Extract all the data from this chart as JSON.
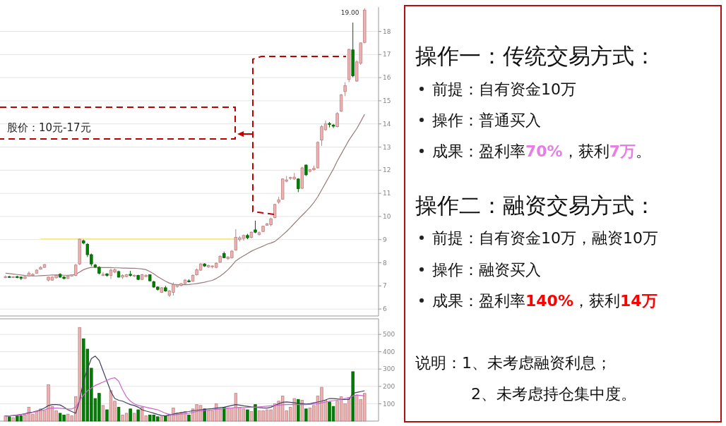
{
  "chart_data": [
    {
      "type": "candlestick",
      "tick_labels": "y",
      "grid": "y",
      "ylim": [
        5.7,
        19.05
      ],
      "yticks": [
        6,
        7,
        8,
        9,
        10,
        11,
        12,
        13,
        14,
        15,
        16,
        17,
        18
      ],
      "categories": [
        null,
        null,
        null,
        null,
        null,
        null,
        null,
        null,
        null,
        null,
        null,
        null,
        null,
        null,
        null,
        null,
        null,
        null,
        null,
        null,
        null,
        null,
        null,
        null,
        null,
        null,
        null,
        null,
        null,
        null,
        null,
        null,
        null,
        null,
        null,
        null,
        null,
        null,
        null,
        null,
        null,
        null,
        null,
        null,
        null,
        null,
        null,
        null,
        null,
        null,
        null,
        null,
        null,
        null,
        null,
        null,
        null,
        null,
        null,
        null,
        null,
        null,
        null,
        null,
        null,
        null,
        null,
        null,
        null,
        null,
        null,
        null,
        null,
        null,
        null,
        null,
        null,
        null,
        null,
        null,
        null,
        null,
        null,
        null,
        null,
        null,
        null,
        null,
        null,
        null,
        null,
        null,
        null
      ],
      "ohlc": [
        [
          7.36,
          7.45,
          7.33,
          7.4
        ],
        [
          7.4,
          7.43,
          7.35,
          7.37
        ],
        [
          7.37,
          7.42,
          7.34,
          7.39
        ],
        [
          7.4,
          7.44,
          7.33,
          7.36
        ],
        [
          7.38,
          7.4,
          7.25,
          7.33
        ],
        [
          7.32,
          7.42,
          7.3,
          7.4
        ],
        [
          7.42,
          7.62,
          7.4,
          7.55
        ],
        [
          7.45,
          7.55,
          7.42,
          7.5
        ],
        [
          7.55,
          7.72,
          7.52,
          7.68
        ],
        [
          7.72,
          7.85,
          7.7,
          7.8
        ],
        [
          7.8,
          7.95,
          7.78,
          7.92
        ],
        [
          7.25,
          7.4,
          7.2,
          7.38
        ],
        [
          7.25,
          7.42,
          7.22,
          7.38
        ],
        [
          7.35,
          7.5,
          7.32,
          7.45
        ],
        [
          7.5,
          7.55,
          7.35,
          7.38
        ],
        [
          7.38,
          7.42,
          7.28,
          7.32
        ],
        [
          7.32,
          7.45,
          7.3,
          7.42
        ],
        [
          7.42,
          7.5,
          7.4,
          7.48
        ],
        [
          7.45,
          7.95,
          7.42,
          7.9
        ],
        [
          7.95,
          9.05,
          7.9,
          9.02
        ],
        [
          8.95,
          9.0,
          8.8,
          8.85
        ],
        [
          8.8,
          8.85,
          8.25,
          8.35
        ],
        [
          8.35,
          8.4,
          7.85,
          7.95
        ],
        [
          7.9,
          7.95,
          7.78,
          7.82
        ],
        [
          7.8,
          7.85,
          7.5,
          7.55
        ],
        [
          7.45,
          7.6,
          7.42,
          7.5
        ],
        [
          7.52,
          7.55,
          7.4,
          7.45
        ],
        [
          7.45,
          7.75,
          7.3,
          7.68
        ],
        [
          7.6,
          7.75,
          7.55,
          7.7
        ],
        [
          7.62,
          7.66,
          7.35,
          7.38
        ],
        [
          7.38,
          7.5,
          7.3,
          7.45
        ],
        [
          7.4,
          7.52,
          7.38,
          7.48
        ],
        [
          7.5,
          7.65,
          7.4,
          7.45
        ],
        [
          7.42,
          7.5,
          7.38,
          7.45
        ],
        [
          7.45,
          7.48,
          7.25,
          7.28
        ],
        [
          7.28,
          7.52,
          7.25,
          7.48
        ],
        [
          7.4,
          7.5,
          7.38,
          7.46
        ],
        [
          7.48,
          7.5,
          7.2,
          7.22
        ],
        [
          7.18,
          7.22,
          6.92,
          6.95
        ],
        [
          6.95,
          6.98,
          6.8,
          6.85
        ],
        [
          6.72,
          6.95,
          6.7,
          6.92
        ],
        [
          6.92,
          7.0,
          6.75,
          6.78
        ],
        [
          6.6,
          6.82,
          6.52,
          6.78
        ],
        [
          6.72,
          7.15,
          6.58,
          7.05
        ],
        [
          6.98,
          7.08,
          6.92,
          7.05
        ],
        [
          7.02,
          7.12,
          6.98,
          7.1
        ],
        [
          7.1,
          7.3,
          7.08,
          7.25
        ],
        [
          7.22,
          7.28,
          7.15,
          7.18
        ],
        [
          7.2,
          7.5,
          7.18,
          7.45
        ],
        [
          7.48,
          7.75,
          7.45,
          7.7
        ],
        [
          7.68,
          7.98,
          7.65,
          7.95
        ],
        [
          7.95,
          7.98,
          7.82,
          7.86
        ],
        [
          7.82,
          7.92,
          7.78,
          7.88
        ],
        [
          7.84,
          7.9,
          7.76,
          7.86
        ],
        [
          7.8,
          8.02,
          7.76,
          7.98
        ],
        [
          8.02,
          8.32,
          8.0,
          8.28
        ],
        [
          8.4,
          8.48,
          8.2,
          8.22
        ],
        [
          8.18,
          8.28,
          8.12,
          8.25
        ],
        [
          8.22,
          8.55,
          8.18,
          8.5
        ],
        [
          8.55,
          9.45,
          8.52,
          9.1
        ],
        [
          9.0,
          9.15,
          8.92,
          9.08
        ],
        [
          9.05,
          9.22,
          8.95,
          9.18
        ],
        [
          9.18,
          9.25,
          9.02,
          9.08
        ],
        [
          9.1,
          9.35,
          9.05,
          9.32
        ],
        [
          9.42,
          9.82,
          9.28,
          9.32
        ],
        [
          9.22,
          9.35,
          9.18,
          9.3
        ],
        [
          9.35,
          9.6,
          9.32,
          9.58
        ],
        [
          9.62,
          9.72,
          9.6,
          9.68
        ],
        [
          9.65,
          9.95,
          9.58,
          9.9
        ],
        [
          9.95,
          10.55,
          9.92,
          10.52
        ],
        [
          10.62,
          10.85,
          10.55,
          10.72
        ],
        [
          10.75,
          11.65,
          10.72,
          11.62
        ],
        [
          11.52,
          11.75,
          11.48,
          11.58
        ],
        [
          11.65,
          11.72,
          11.58,
          11.68
        ],
        [
          11.62,
          11.88,
          11.58,
          11.7
        ],
        [
          11.62,
          11.65,
          11.05,
          11.2
        ],
        [
          11.22,
          12.15,
          11.18,
          12.1
        ],
        [
          12.22,
          12.25,
          11.75,
          11.8
        ],
        [
          11.95,
          12.05,
          11.9,
          12.02
        ],
        [
          12.02,
          12.2,
          11.98,
          12.08
        ],
        [
          12.1,
          13.25,
          12.08,
          13.2
        ],
        [
          13.3,
          13.95,
          13.05,
          13.88
        ],
        [
          13.75,
          14.15,
          13.7,
          14.0
        ],
        [
          14.02,
          14.08,
          13.85,
          13.98
        ],
        [
          13.95,
          14.0,
          13.82,
          13.9
        ],
        [
          13.88,
          14.5,
          13.85,
          14.45
        ],
        [
          14.55,
          15.3,
          14.52,
          15.25
        ],
        [
          15.4,
          15.8,
          15.2,
          15.65
        ],
        [
          15.92,
          17.25,
          15.8,
          17.22
        ],
        [
          17.2,
          18.38,
          16.02,
          16.08
        ],
        [
          15.85,
          16.75,
          15.82,
          16.68
        ],
        [
          16.62,
          17.52,
          16.55,
          17.5
        ],
        [
          17.52,
          19.0,
          17.48,
          18.92
        ]
      ],
      "colors": [
        "#f2b0b0",
        "#008000",
        "#f2b0b0",
        "#008000",
        "#008000",
        "#f2b0b0",
        "#f2b0b0",
        "#f2b0b0",
        "#f2b0b0",
        "#f2b0b0",
        "#f2b0b0",
        "#f2b0b0",
        "#f2b0b0",
        "#f2b0b0",
        "#008000",
        "#008000",
        "#f2b0b0",
        "#f2b0b0",
        "#f2b0b0",
        "#f2b0b0",
        "#008000",
        "#008000",
        "#008000",
        "#008000",
        "#008000",
        "#f2b0b0",
        "#008000",
        "#f2b0b0",
        "#f2b0b0",
        "#008000",
        "#f2b0b0",
        "#f2b0b0",
        "#008000",
        "#f2b0b0",
        "#008000",
        "#f2b0b0",
        "#f2b0b0",
        "#008000",
        "#008000",
        "#008000",
        "#f2b0b0",
        "#008000",
        "#f2b0b0",
        "#f2b0b0",
        "#f2b0b0",
        "#f2b0b0",
        "#f2b0b0",
        "#008000",
        "#f2b0b0",
        "#f2b0b0",
        "#f2b0b0",
        "#008000",
        "#f2b0b0",
        "#f2b0b0",
        "#f2b0b0",
        "#f2b0b0",
        "#008000",
        "#f2b0b0",
        "#f2b0b0",
        "#f2b0b0",
        "#f2b0b0",
        "#f2b0b0",
        "#008000",
        "#f2b0b0",
        "#008000",
        "#f2b0b0",
        "#f2b0b0",
        "#f2b0b0",
        "#f2b0b0",
        "#f2b0b0",
        "#f2b0b0",
        "#f2b0b0",
        "#f2b0b0",
        "#f2b0b0",
        "#f2b0b0",
        "#008000",
        "#f2b0b0",
        "#008000",
        "#f2b0b0",
        "#f2b0b0",
        "#f2b0b0",
        "#f2b0b0",
        "#f2b0b0",
        "#008000",
        "#008000",
        "#f2b0b0",
        "#f2b0b0",
        "#f2b0b0",
        "#f2b0b0",
        "#008000",
        "#f2b0b0",
        "#f2b0b0",
        "#f2b0b0"
      ],
      "series": [
        {
          "type": "line",
          "color": "#9a7a7a",
          "values": [
            7.55,
            7.53,
            7.51,
            7.49,
            7.47,
            7.45,
            7.44,
            7.43,
            7.43,
            7.44,
            7.45,
            7.46,
            7.47,
            7.47,
            7.47,
            7.46,
            7.46,
            7.47,
            7.5,
            7.6,
            7.7,
            7.76,
            7.8,
            7.8,
            7.8,
            7.79,
            7.79,
            7.79,
            7.78,
            7.78,
            7.77,
            7.77,
            7.76,
            7.76,
            7.75,
            7.73,
            7.7,
            7.62,
            7.52,
            7.4,
            7.3,
            7.2,
            7.12,
            7.07,
            7.05,
            7.05,
            7.05,
            7.06,
            7.08,
            7.1,
            7.13,
            7.16,
            7.2,
            7.24,
            7.32,
            7.42,
            7.55,
            7.7,
            7.88,
            8.08,
            8.2,
            8.3,
            8.4,
            8.5,
            8.58,
            8.65,
            8.72,
            8.8,
            8.85,
            8.92,
            9.05,
            9.2,
            9.35,
            9.52,
            9.7,
            9.88,
            10.05,
            10.22,
            10.4,
            10.6,
            10.85,
            11.15,
            11.45,
            11.75,
            12.05,
            12.4,
            12.7,
            13.0,
            13.3,
            13.55,
            13.8,
            14.1,
            14.42
          ]
        },
        {
          "type": "line",
          "color": "#f0e060",
          "values": [
            null,
            null,
            null,
            null,
            null,
            null,
            null,
            null,
            null,
            9.03,
            9.03,
            9.03,
            9.03,
            9.03,
            9.03,
            9.03,
            9.03,
            9.03,
            9.03,
            9.03,
            9.03,
            9.03,
            9.03,
            9.03,
            9.03,
            9.03,
            9.03,
            9.03,
            9.03,
            9.03,
            9.03,
            9.03,
            9.03,
            9.03,
            9.03,
            9.03,
            9.03,
            9.03,
            9.03,
            9.03,
            9.03,
            9.03,
            9.03,
            9.03,
            9.03,
            9.03,
            9.03,
            9.03,
            9.03,
            9.03,
            9.03,
            9.03,
            9.03,
            9.03,
            9.03,
            9.03,
            9.03,
            9.03,
            9.03,
            9.03,
            null,
            null,
            null,
            null,
            null,
            null,
            null,
            null,
            null,
            null,
            null,
            null,
            null,
            null,
            null,
            null,
            null,
            null,
            null,
            null,
            null,
            null,
            null,
            null,
            null,
            null,
            null,
            null,
            null,
            null,
            null,
            null,
            null
          ]
        }
      ],
      "annotations": [
        "19.00",
        "股价：10元-17元"
      ]
    },
    {
      "type": "bar",
      "tick_labels": "y",
      "grid": "y",
      "ylim": [
        0,
        590
      ],
      "yticks": [
        100,
        200,
        300,
        400,
        500
      ],
      "categories": [
        null,
        null,
        null,
        null,
        null,
        null,
        null,
        null,
        null,
        null,
        null,
        null,
        null,
        null,
        null,
        null,
        null,
        null,
        null,
        null,
        null,
        null,
        null,
        null,
        null,
        null,
        null,
        null,
        null,
        null,
        null,
        null,
        null,
        null,
        null,
        null,
        null,
        null,
        null,
        null,
        null,
        null,
        null,
        null,
        null,
        null,
        null,
        null,
        null,
        null,
        null,
        null,
        null,
        null,
        null,
        null,
        null,
        null,
        null,
        null,
        null,
        null,
        null,
        null,
        null,
        null,
        null,
        null,
        null,
        null,
        null,
        null,
        null,
        null,
        null,
        null,
        null,
        null,
        null,
        null,
        null,
        null,
        null,
        null,
        null,
        null,
        null,
        null,
        null,
        null,
        null,
        null,
        null
      ],
      "values": [
        30,
        25,
        20,
        30,
        30,
        35,
        80,
        40,
        55,
        70,
        60,
        210,
        85,
        60,
        45,
        35,
        40,
        30,
        140,
        540,
        475,
        415,
        305,
        130,
        160,
        90,
        65,
        175,
        115,
        80,
        35,
        45,
        70,
        45,
        65,
        80,
        30,
        35,
        35,
        25,
        25,
        30,
        40,
        75,
        45,
        50,
        55,
        35,
        70,
        95,
        90,
        70,
        60,
        60,
        100,
        70,
        80,
        75,
        75,
        160,
        80,
        70,
        65,
        55,
        95,
        60,
        60,
        65,
        65,
        100,
        115,
        145,
        60,
        80,
        130,
        125,
        120,
        70,
        75,
        90,
        145,
        195,
        120,
        110,
        85,
        115,
        140,
        100,
        135,
        285,
        150,
        125,
        160
      ],
      "colors": [
        "#f2b0b0",
        "#008000",
        "#f2b0b0",
        "#008000",
        "#008000",
        "#f2b0b0",
        "#f2b0b0",
        "#f2b0b0",
        "#f2b0b0",
        "#f2b0b0",
        "#f2b0b0",
        "#f2b0b0",
        "#f2b0b0",
        "#f2b0b0",
        "#008000",
        "#008000",
        "#f2b0b0",
        "#f2b0b0",
        "#f2b0b0",
        "#f2b0b0",
        "#008000",
        "#008000",
        "#008000",
        "#008000",
        "#008000",
        "#f2b0b0",
        "#008000",
        "#f2b0b0",
        "#f2b0b0",
        "#008000",
        "#f2b0b0",
        "#f2b0b0",
        "#008000",
        "#f2b0b0",
        "#008000",
        "#f2b0b0",
        "#f2b0b0",
        "#008000",
        "#008000",
        "#008000",
        "#f2b0b0",
        "#008000",
        "#f2b0b0",
        "#f2b0b0",
        "#f2b0b0",
        "#f2b0b0",
        "#f2b0b0",
        "#008000",
        "#f2b0b0",
        "#f2b0b0",
        "#f2b0b0",
        "#008000",
        "#f2b0b0",
        "#f2b0b0",
        "#f2b0b0",
        "#f2b0b0",
        "#008000",
        "#f2b0b0",
        "#f2b0b0",
        "#f2b0b0",
        "#f2b0b0",
        "#f2b0b0",
        "#008000",
        "#f2b0b0",
        "#008000",
        "#f2b0b0",
        "#f2b0b0",
        "#f2b0b0",
        "#f2b0b0",
        "#f2b0b0",
        "#f2b0b0",
        "#f2b0b0",
        "#f2b0b0",
        "#f2b0b0",
        "#f2b0b0",
        "#008000",
        "#f2b0b0",
        "#008000",
        "#f2b0b0",
        "#f2b0b0",
        "#f2b0b0",
        "#f2b0b0",
        "#f2b0b0",
        "#008000",
        "#008000",
        "#f2b0b0",
        "#f2b0b0",
        "#f2b0b0",
        "#f2b0b0",
        "#008000",
        "#f2b0b0",
        "#f2b0b0",
        "#f2b0b0"
      ],
      "series": [
        {
          "type": "line",
          "color": "#404060",
          "values": [
            30,
            30,
            32,
            35,
            38,
            42,
            48,
            52,
            58,
            65,
            75,
            90,
            95,
            95,
            93,
            80,
            65,
            55,
            45,
            120,
            230,
            300,
            360,
            375,
            350,
            290,
            230,
            170,
            130,
            120,
            115,
            105,
            95,
            90,
            80,
            65,
            58,
            52,
            45,
            38,
            32,
            30,
            35,
            40,
            45,
            48,
            52,
            55,
            60,
            62,
            65,
            68,
            70,
            72,
            75,
            78,
            80,
            85,
            90,
            95,
            92,
            88,
            85,
            82,
            80,
            78,
            76,
            75,
            80,
            90,
            100,
            108,
            110,
            108,
            105,
            102,
            100,
            98,
            100,
            105,
            110,
            115,
            122,
            130,
            130,
            128,
            125,
            124,
            125,
            160,
            165,
            170,
            175
          ]
        },
        {
          "type": "line",
          "color": "#cc66cc",
          "values": [
            28,
            30,
            32,
            34,
            36,
            40,
            45,
            50,
            55,
            60,
            65,
            72,
            75,
            75,
            74,
            72,
            70,
            70,
            80,
            120,
            150,
            175,
            190,
            205,
            215,
            225,
            235,
            245,
            250,
            230,
            180,
            140,
            115,
            100,
            90,
            85,
            80,
            75,
            70,
            65,
            55,
            45,
            38,
            35,
            38,
            40,
            42,
            45,
            50,
            55,
            58,
            60,
            62,
            65,
            68,
            70,
            72,
            75,
            76,
            78,
            78,
            78,
            79,
            80,
            80,
            82,
            84,
            86,
            88,
            90,
            92,
            94,
            95,
            95,
            95,
            95,
            95,
            95,
            96,
            98,
            100,
            105,
            110,
            115,
            118,
            120,
            125,
            130,
            135,
            145,
            150,
            148,
            145
          ]
        }
      ]
    },
    {
      "type": "other",
      "annotations": [
        "操作一：传统交易方式：",
        "前提：自有资金10万",
        "操作：普通买入",
        "成果：盈利率",
        "70%",
        "，获利",
        "7万",
        "。",
        "操作二：融资交易方式：",
        "前提：自有资金10万，融资10万",
        "操作：融资买入",
        "成果：盈利率",
        "140%",
        "，获利",
        "14万",
        "说明：1、未考虑融资利息；",
        "2、未考虑持仓集中度。"
      ]
    }
  ]
}
